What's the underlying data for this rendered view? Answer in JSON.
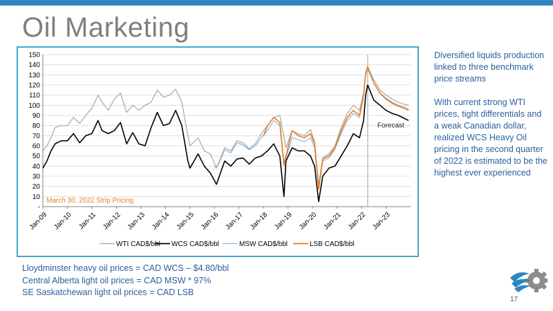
{
  "slide": {
    "title": "Oil Marketing",
    "side_paragraphs": [
      "Diversified liquids production linked to three benchmark price streams",
      "With current strong WTI prices, tight differentials and a weak Canadian dollar, realized WCS Heavy Oil  pricing in the second quarter of 2022 is estimated to be the highest  ever experienced"
    ],
    "footer_notes": [
      "Lloydminster heavy oil prices = CAD WCS – $4.80/bbl",
      "Central Alberta light oil prices = CAD MSW * 97%",
      "SE Saskatchewan light oil prices = CAD LSB"
    ],
    "page_number": "17",
    "logo_icon": "gear-wave-logo-icon",
    "colors": {
      "accent": "#2e86c1",
      "frame": "#41a6c9",
      "text_blue": "#2a5f9e"
    }
  },
  "chart_data": {
    "type": "line",
    "title": "",
    "xlabel": "",
    "ylabel": "",
    "ylim": [
      0,
      150
    ],
    "xlim": [
      "2009-01",
      "2024-01"
    ],
    "yticks": [
      "-",
      "10",
      "20",
      "30",
      "40",
      "50",
      "60",
      "70",
      "80",
      "90",
      "100",
      "110",
      "120",
      "130",
      "140",
      "150"
    ],
    "xticks": [
      "Jan-09",
      "Jan-10",
      "Jan-11",
      "Jan-12",
      "Jan-13",
      "Jan-14",
      "Jan-15",
      "Jan-16",
      "Jan-17",
      "Jan-18",
      "Jan-19",
      "Jan-20",
      "Jan-21",
      "Jan-22",
      "Jan-23"
    ],
    "grid": true,
    "legend_position": "bottom",
    "annotations": [
      {
        "text": "March 30, 2022 Strip Pricing",
        "color": "#e87d1e",
        "position": "bottom-left"
      },
      {
        "text": "Forecast",
        "color": "#222222",
        "position": "right-of-forecast-line"
      }
    ],
    "forecast_start": "2022-04",
    "series": [
      {
        "name": "WTI CAD$/bbl",
        "color": "#a6a6a6",
        "x": [
          "2009-01",
          "2009-03",
          "2009-05",
          "2009-07",
          "2009-10",
          "2010-01",
          "2010-04",
          "2010-07",
          "2010-10",
          "2011-01",
          "2011-04",
          "2011-06",
          "2011-09",
          "2011-12",
          "2012-03",
          "2012-06",
          "2012-09",
          "2012-12",
          "2013-03",
          "2013-06",
          "2013-09",
          "2013-12",
          "2014-03",
          "2014-06",
          "2014-09",
          "2014-12",
          "2015-01",
          "2015-05",
          "2015-08",
          "2015-11",
          "2016-02",
          "2016-06",
          "2016-09",
          "2016-12",
          "2017-03",
          "2017-06",
          "2017-09",
          "2017-12",
          "2018-03",
          "2018-06",
          "2018-09",
          "2018-12",
          "2019-03",
          "2019-06",
          "2019-09",
          "2019-12",
          "2020-02",
          "2020-04",
          "2020-06",
          "2020-09",
          "2020-12",
          "2021-03",
          "2021-06",
          "2021-09",
          "2021-12",
          "2022-02",
          "2022-03",
          "2022-04",
          "2022-07",
          "2022-10",
          "2023-01",
          "2023-04",
          "2023-07",
          "2023-10",
          "2023-12"
        ],
        "values": [
          55,
          60,
          68,
          78,
          80,
          80,
          88,
          82,
          90,
          97,
          110,
          103,
          95,
          106,
          112,
          93,
          100,
          95,
          100,
          103,
          115,
          108,
          110,
          116,
          103,
          70,
          60,
          68,
          55,
          52,
          38,
          58,
          55,
          65,
          63,
          57,
          62,
          72,
          80,
          88,
          90,
          58,
          75,
          72,
          70,
          76,
          64,
          22,
          48,
          52,
          60,
          78,
          92,
          100,
          95,
          112,
          130,
          138,
          125,
          115,
          110,
          106,
          103,
          101,
          100
        ]
      },
      {
        "name": "WCS CAD$/bbl",
        "color": "#000000",
        "x": [
          "2009-01",
          "2009-03",
          "2009-05",
          "2009-07",
          "2009-10",
          "2010-01",
          "2010-04",
          "2010-07",
          "2010-10",
          "2011-01",
          "2011-04",
          "2011-06",
          "2011-09",
          "2011-12",
          "2012-03",
          "2012-06",
          "2012-09",
          "2012-12",
          "2013-03",
          "2013-06",
          "2013-09",
          "2013-12",
          "2014-03",
          "2014-06",
          "2014-09",
          "2014-12",
          "2015-01",
          "2015-05",
          "2015-08",
          "2015-11",
          "2016-02",
          "2016-06",
          "2016-09",
          "2016-12",
          "2017-03",
          "2017-06",
          "2017-09",
          "2017-12",
          "2018-03",
          "2018-06",
          "2018-09",
          "2018-11",
          "2018-12",
          "2019-03",
          "2019-06",
          "2019-09",
          "2019-12",
          "2020-02",
          "2020-04",
          "2020-06",
          "2020-09",
          "2020-12",
          "2021-03",
          "2021-06",
          "2021-09",
          "2021-12",
          "2022-02",
          "2022-03",
          "2022-04",
          "2022-07",
          "2022-10",
          "2023-01",
          "2023-04",
          "2023-07",
          "2023-10",
          "2023-12"
        ],
        "values": [
          38,
          45,
          55,
          62,
          65,
          65,
          72,
          63,
          70,
          72,
          85,
          75,
          72,
          75,
          83,
          62,
          73,
          62,
          60,
          78,
          93,
          80,
          82,
          95,
          80,
          45,
          38,
          52,
          40,
          33,
          22,
          45,
          40,
          47,
          48,
          42,
          48,
          50,
          55,
          62,
          50,
          10,
          45,
          58,
          55,
          55,
          50,
          40,
          5,
          30,
          38,
          40,
          50,
          60,
          72,
          68,
          85,
          110,
          120,
          105,
          100,
          95,
          92,
          90,
          87,
          85
        ]
      },
      {
        "name": "MSW CAD$/bbl",
        "color": "#8eb4e3",
        "x": [
          "2016-01",
          "2016-03",
          "2016-06",
          "2016-09",
          "2016-12",
          "2017-03",
          "2017-06",
          "2017-09",
          "2017-12",
          "2018-03",
          "2018-06",
          "2018-09",
          "2018-11",
          "2018-12",
          "2019-03",
          "2019-06",
          "2019-09",
          "2019-12",
          "2020-02",
          "2020-04",
          "2020-06",
          "2020-09",
          "2020-12",
          "2021-03",
          "2021-06",
          "2021-09",
          "2021-12",
          "2022-02",
          "2022-03",
          "2022-04",
          "2022-07",
          "2022-10",
          "2023-01",
          "2023-04",
          "2023-07",
          "2023-10",
          "2023-12"
        ],
        "values": [
          38,
          42,
          56,
          53,
          63,
          61,
          56,
          60,
          68,
          75,
          85,
          80,
          40,
          48,
          68,
          66,
          64,
          68,
          58,
          18,
          45,
          48,
          57,
          72,
          85,
          92,
          88,
          108,
          130,
          136,
          122,
          112,
          107,
          103,
          100,
          98,
          96
        ]
      },
      {
        "name": "LSB CAD$/bbl",
        "color": "#e87d1e",
        "x": [
          "2018-01",
          "2018-03",
          "2018-06",
          "2018-09",
          "2018-11",
          "2018-12",
          "2019-03",
          "2019-06",
          "2019-09",
          "2019-12",
          "2020-02",
          "2020-04",
          "2020-06",
          "2020-09",
          "2020-12",
          "2021-03",
          "2021-06",
          "2021-09",
          "2021-12",
          "2022-02",
          "2022-03",
          "2022-04",
          "2022-07",
          "2022-10",
          "2023-01",
          "2023-04",
          "2023-07",
          "2023-10",
          "2023-12"
        ],
        "values": [
          70,
          80,
          88,
          83,
          42,
          50,
          75,
          70,
          68,
          72,
          62,
          17,
          47,
          50,
          58,
          75,
          88,
          95,
          90,
          110,
          132,
          138,
          122,
          112,
          106,
          102,
          99,
          97,
          95
        ]
      }
    ]
  }
}
